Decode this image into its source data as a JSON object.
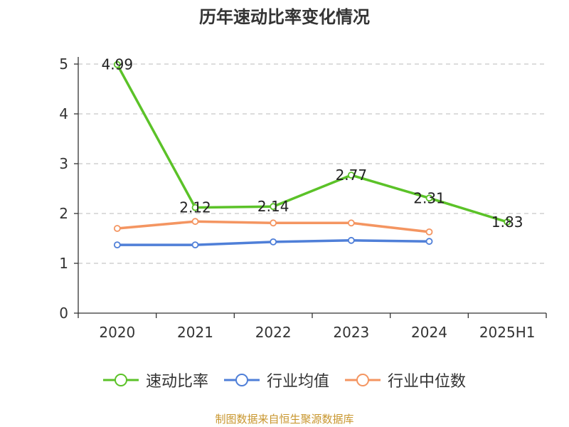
{
  "chart_data": {
    "type": "line",
    "title": "历年速动比率变化情况",
    "categories": [
      "2020",
      "2021",
      "2022",
      "2023",
      "2024",
      "2025H1"
    ],
    "ylim": [
      0,
      5
    ],
    "yticks": [
      "0",
      "1",
      "2",
      "3",
      "4",
      "5"
    ],
    "grid": true,
    "legend_position": "bottom",
    "series": [
      {
        "name": "速动比率",
        "color": "#5bc228",
        "values": [
          4.99,
          2.12,
          2.14,
          2.77,
          2.31,
          1.83
        ],
        "labels": [
          "4.99",
          "2.12",
          "2.14",
          "2.77",
          "2.31",
          "1.83"
        ]
      },
      {
        "name": "行业均值",
        "color": "#4f7fd8",
        "values": [
          1.37,
          1.37,
          1.43,
          1.46,
          1.44,
          null
        ]
      },
      {
        "name": "行业中位数",
        "color": "#f49561",
        "values": [
          1.7,
          1.84,
          1.81,
          1.81,
          1.63,
          null
        ]
      }
    ]
  },
  "source_text": "制图数据来自恒生聚源数据库"
}
